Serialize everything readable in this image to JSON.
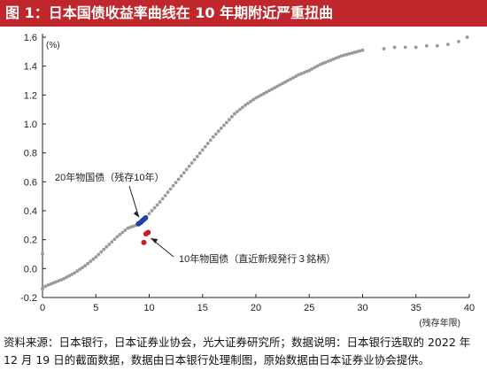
{
  "page": {
    "title": "图 1：日本国债收益率曲线在 10 年期附近严重扭曲",
    "source_note": "资料来源：日本银行，日本证券业协会，光大证券研究所；数据说明：日本银行选取的 2022 年 12 月 19 日的截面数据，数据由日本银行处理制图，原始数据由日本证券业协会提供。"
  },
  "chart_data": {
    "type": "scatter",
    "title": "",
    "xlabel": "(残存年限)",
    "ylabel": "(%)",
    "xlim": [
      0,
      40
    ],
    "ylim": [
      -0.2,
      1.6
    ],
    "x_ticks": [
      0,
      5,
      10,
      15,
      20,
      25,
      30,
      35,
      40
    ],
    "y_ticks": [
      -0.2,
      0.0,
      0.2,
      0.4,
      0.6,
      0.8,
      1.0,
      1.2,
      1.4,
      1.6
    ],
    "x_tick_labels": [
      "0",
      "5",
      "10",
      "15",
      "20",
      "25",
      "30",
      "35",
      "40"
    ],
    "y_tick_labels": [
      "-0.2",
      "0.0",
      "0.2",
      "0.4",
      "0.6",
      "0.8",
      "1.0",
      "1.2",
      "1.4",
      "1.6"
    ],
    "grid": false,
    "colors": {
      "curve": "#9a9a9a",
      "benchmark_20y": "#1f3fb0",
      "benchmark_10y": "#c81e1e"
    },
    "curve_knots": [
      [
        0.0,
        -0.14
      ],
      [
        0.3,
        -0.12
      ],
      [
        1.0,
        -0.1
      ],
      [
        2.0,
        -0.07
      ],
      [
        3.0,
        -0.03
      ],
      [
        4.0,
        0.02
      ],
      [
        5.0,
        0.08
      ],
      [
        6.0,
        0.15
      ],
      [
        7.0,
        0.22
      ],
      [
        8.0,
        0.28
      ],
      [
        8.8,
        0.3
      ],
      [
        9.3,
        0.32
      ],
      [
        10.0,
        0.38
      ],
      [
        11.0,
        0.46
      ],
      [
        12.0,
        0.55
      ],
      [
        13.0,
        0.64
      ],
      [
        14.0,
        0.73
      ],
      [
        15.0,
        0.82
      ],
      [
        16.0,
        0.91
      ],
      [
        17.0,
        0.99
      ],
      [
        18.0,
        1.07
      ],
      [
        19.0,
        1.13
      ],
      [
        20.0,
        1.18
      ],
      [
        21.0,
        1.22
      ],
      [
        22.0,
        1.26
      ],
      [
        23.0,
        1.3
      ],
      [
        24.0,
        1.34
      ],
      [
        25.0,
        1.37
      ],
      [
        26.0,
        1.41
      ],
      [
        27.0,
        1.44
      ],
      [
        28.0,
        1.47
      ],
      [
        29.0,
        1.49
      ],
      [
        30.0,
        1.51
      ]
    ],
    "extra_points": [
      [
        0.0,
        0.1
      ],
      [
        32.0,
        1.52
      ],
      [
        33.0,
        1.53
      ],
      [
        34.0,
        1.53
      ],
      [
        35.0,
        1.53
      ],
      [
        36.0,
        1.54
      ],
      [
        37.0,
        1.54
      ],
      [
        38.0,
        1.55
      ],
      [
        39.0,
        1.57
      ],
      [
        39.8,
        1.6
      ]
    ],
    "series": [
      {
        "name": "20年物国债（残存10年）",
        "points": [
          [
            9.0,
            0.31
          ],
          [
            9.2,
            0.32
          ],
          [
            9.35,
            0.33
          ],
          [
            9.5,
            0.34
          ],
          [
            9.65,
            0.35
          ]
        ]
      },
      {
        "name": "10年物国债（直近新规発行３銘柄）",
        "points": [
          [
            9.5,
            0.18
          ],
          [
            9.7,
            0.24
          ],
          [
            9.9,
            0.25
          ]
        ]
      }
    ],
    "annotations": [
      {
        "text": "20年物国债（残存10年）",
        "target": [
          9.2,
          0.33
        ]
      },
      {
        "text": "10年物国债（直近新规発行３銘柄）",
        "target": [
          9.9,
          0.21
        ]
      }
    ]
  }
}
